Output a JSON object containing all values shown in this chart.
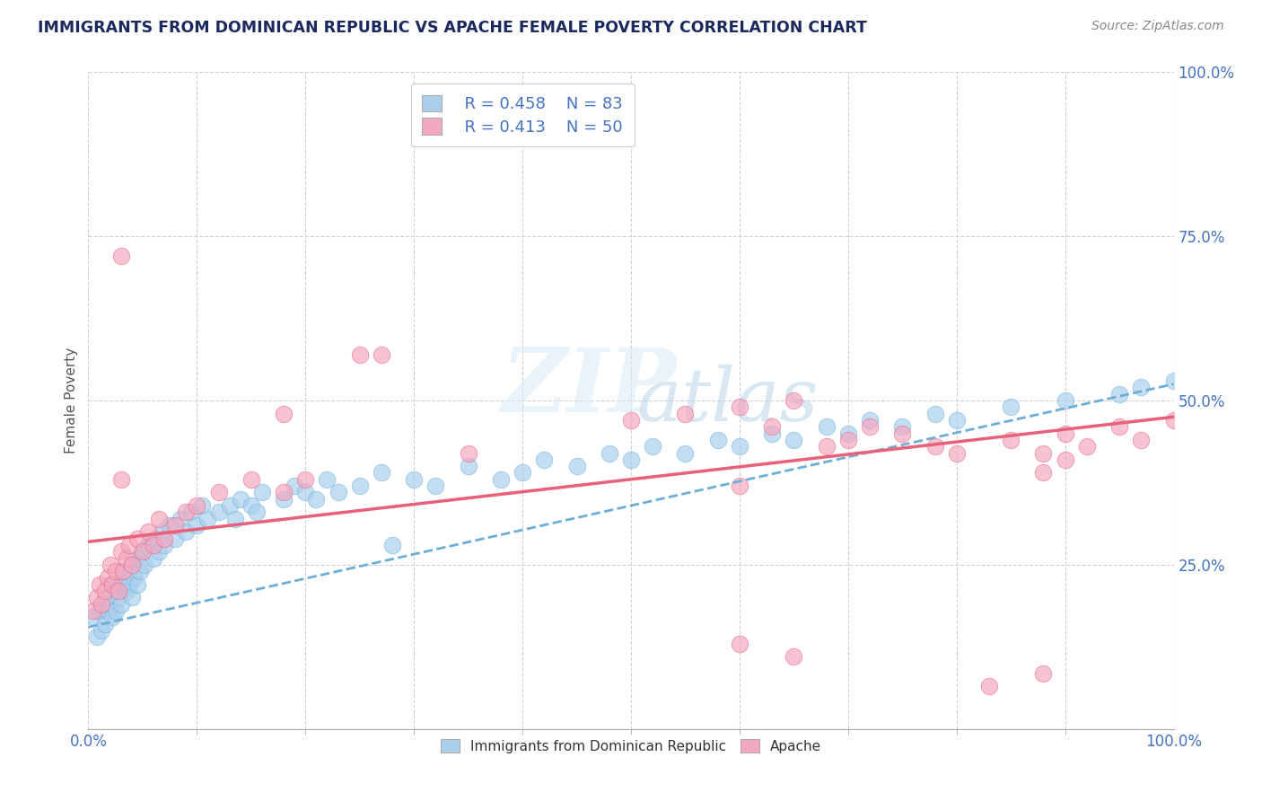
{
  "title": "IMMIGRANTS FROM DOMINICAN REPUBLIC VS APACHE FEMALE POVERTY CORRELATION CHART",
  "source": "Source: ZipAtlas.com",
  "ylabel": "Female Poverty",
  "xlim": [
    0.0,
    1.0
  ],
  "ylim": [
    0.0,
    1.0
  ],
  "ytick_positions": [
    0.0,
    0.25,
    0.5,
    0.75,
    1.0
  ],
  "ytick_labels": [
    "",
    "25.0%",
    "50.0%",
    "75.0%",
    "100.0%"
  ],
  "xtick_positions": [
    0.0,
    1.0
  ],
  "xtick_labels": [
    "0.0%",
    "100.0%"
  ],
  "legend_r1": "R = 0.458",
  "legend_n1": "N = 83",
  "legend_r2": "R = 0.413",
  "legend_n2": "N = 50",
  "blue_dot_color": "#aacfed",
  "pink_dot_color": "#f4a8c0",
  "blue_line_color": "#6baed6",
  "pink_line_color": "#e8607a",
  "title_color": "#1a2a5e",
  "axis_label_color": "#555555",
  "tick_color": "#4472c4",
  "grid_color": "#d0d0d0",
  "background_color": "#ffffff",
  "blue_line_x": [
    0.0,
    1.0
  ],
  "blue_line_y": [
    0.155,
    0.525
  ],
  "pink_line_x": [
    0.0,
    1.0
  ],
  "pink_line_y": [
    0.285,
    0.475
  ],
  "blue_scatter_x": [
    0.005,
    0.008,
    0.01,
    0.012,
    0.015,
    0.015,
    0.018,
    0.02,
    0.02,
    0.022,
    0.025,
    0.025,
    0.028,
    0.03,
    0.03,
    0.032,
    0.035,
    0.035,
    0.038,
    0.04,
    0.04,
    0.042,
    0.045,
    0.045,
    0.048,
    0.05,
    0.052,
    0.055,
    0.06,
    0.062,
    0.065,
    0.068,
    0.07,
    0.075,
    0.08,
    0.085,
    0.09,
    0.095,
    0.1,
    0.105,
    0.11,
    0.12,
    0.13,
    0.135,
    0.14,
    0.15,
    0.155,
    0.16,
    0.18,
    0.19,
    0.2,
    0.21,
    0.22,
    0.23,
    0.25,
    0.27,
    0.3,
    0.32,
    0.35,
    0.38,
    0.4,
    0.42,
    0.45,
    0.48,
    0.5,
    0.52,
    0.55,
    0.58,
    0.6,
    0.63,
    0.65,
    0.68,
    0.7,
    0.72,
    0.75,
    0.78,
    0.8,
    0.85,
    0.9,
    0.95,
    0.97,
    1.0,
    0.28
  ],
  "blue_scatter_y": [
    0.17,
    0.14,
    0.18,
    0.15,
    0.16,
    0.2,
    0.18,
    0.19,
    0.22,
    0.17,
    0.21,
    0.18,
    0.2,
    0.22,
    0.19,
    0.23,
    0.21,
    0.24,
    0.22,
    0.25,
    0.2,
    0.23,
    0.26,
    0.22,
    0.24,
    0.27,
    0.25,
    0.28,
    0.26,
    0.29,
    0.27,
    0.3,
    0.28,
    0.31,
    0.29,
    0.32,
    0.3,
    0.33,
    0.31,
    0.34,
    0.32,
    0.33,
    0.34,
    0.32,
    0.35,
    0.34,
    0.33,
    0.36,
    0.35,
    0.37,
    0.36,
    0.35,
    0.38,
    0.36,
    0.37,
    0.39,
    0.38,
    0.37,
    0.4,
    0.38,
    0.39,
    0.41,
    0.4,
    0.42,
    0.41,
    0.43,
    0.42,
    0.44,
    0.43,
    0.45,
    0.44,
    0.46,
    0.45,
    0.47,
    0.46,
    0.48,
    0.47,
    0.49,
    0.5,
    0.51,
    0.52,
    0.53,
    0.28
  ],
  "pink_scatter_x": [
    0.005,
    0.008,
    0.01,
    0.012,
    0.015,
    0.018,
    0.02,
    0.022,
    0.025,
    0.028,
    0.03,
    0.032,
    0.035,
    0.038,
    0.04,
    0.045,
    0.05,
    0.055,
    0.06,
    0.065,
    0.07,
    0.08,
    0.09,
    0.1,
    0.12,
    0.15,
    0.18,
    0.2,
    0.35,
    0.5,
    0.55,
    0.6,
    0.63,
    0.65,
    0.68,
    0.7,
    0.72,
    0.75,
    0.78,
    0.8,
    0.85,
    0.88,
    0.9,
    0.92,
    0.95,
    0.97,
    1.0,
    0.6,
    0.88,
    0.9
  ],
  "pink_scatter_y": [
    0.18,
    0.2,
    0.22,
    0.19,
    0.21,
    0.23,
    0.25,
    0.22,
    0.24,
    0.21,
    0.27,
    0.24,
    0.26,
    0.28,
    0.25,
    0.29,
    0.27,
    0.3,
    0.28,
    0.32,
    0.29,
    0.31,
    0.33,
    0.34,
    0.36,
    0.38,
    0.36,
    0.38,
    0.42,
    0.47,
    0.48,
    0.49,
    0.46,
    0.5,
    0.43,
    0.44,
    0.46,
    0.45,
    0.43,
    0.42,
    0.44,
    0.42,
    0.45,
    0.43,
    0.46,
    0.44,
    0.47,
    0.37,
    0.39,
    0.41
  ],
  "special_pink_outliers": [
    [
      0.03,
      0.72
    ],
    [
      0.25,
      0.57
    ],
    [
      0.27,
      0.57
    ],
    [
      0.18,
      0.48
    ],
    [
      0.03,
      0.38
    ],
    [
      0.6,
      0.13
    ],
    [
      0.65,
      0.11
    ],
    [
      0.83,
      0.065
    ],
    [
      0.88,
      0.085
    ]
  ],
  "watermark_zip": "ZIP",
  "watermark_atlas": "atlas"
}
